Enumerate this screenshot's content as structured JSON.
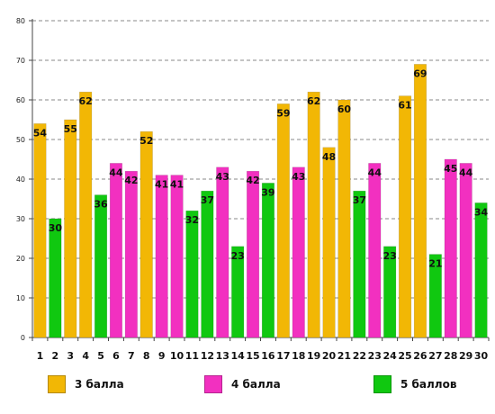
{
  "chart_data": {
    "type": "bar",
    "categories": [
      "1",
      "2",
      "3",
      "4",
      "5",
      "6",
      "7",
      "8",
      "9",
      "10",
      "11",
      "12",
      "13",
      "14",
      "15",
      "16",
      "17",
      "18",
      "19",
      "20",
      "21",
      "22",
      "23",
      "24",
      "25",
      "26",
      "27",
      "28",
      "29",
      "30"
    ],
    "values": [
      54,
      30,
      55,
      62,
      36,
      44,
      42,
      52,
      41,
      41,
      32,
      37,
      43,
      23,
      42,
      39,
      59,
      43,
      62,
      48,
      60,
      37,
      44,
      23,
      61,
      69,
      21,
      45,
      44,
      34
    ],
    "groups": [
      0,
      2,
      0,
      0,
      2,
      1,
      1,
      0,
      1,
      1,
      2,
      2,
      1,
      2,
      1,
      2,
      0,
      1,
      0,
      0,
      0,
      2,
      1,
      2,
      0,
      0,
      2,
      1,
      1,
      2
    ],
    "legend": [
      {
        "name": "3 балла",
        "color": "#f2b705"
      },
      {
        "name": "4 балла",
        "color": "#f230c0"
      },
      {
        "name": "5 баллов",
        "color": "#10c810"
      }
    ],
    "yticks": [
      "0",
      "10",
      "20",
      "30",
      "40",
      "50",
      "60",
      "70",
      "80"
    ],
    "ylim": [
      0,
      80
    ],
    "grid": true,
    "legend_position": "bottom",
    "title": "",
    "xlabel": "",
    "ylabel": ""
  }
}
